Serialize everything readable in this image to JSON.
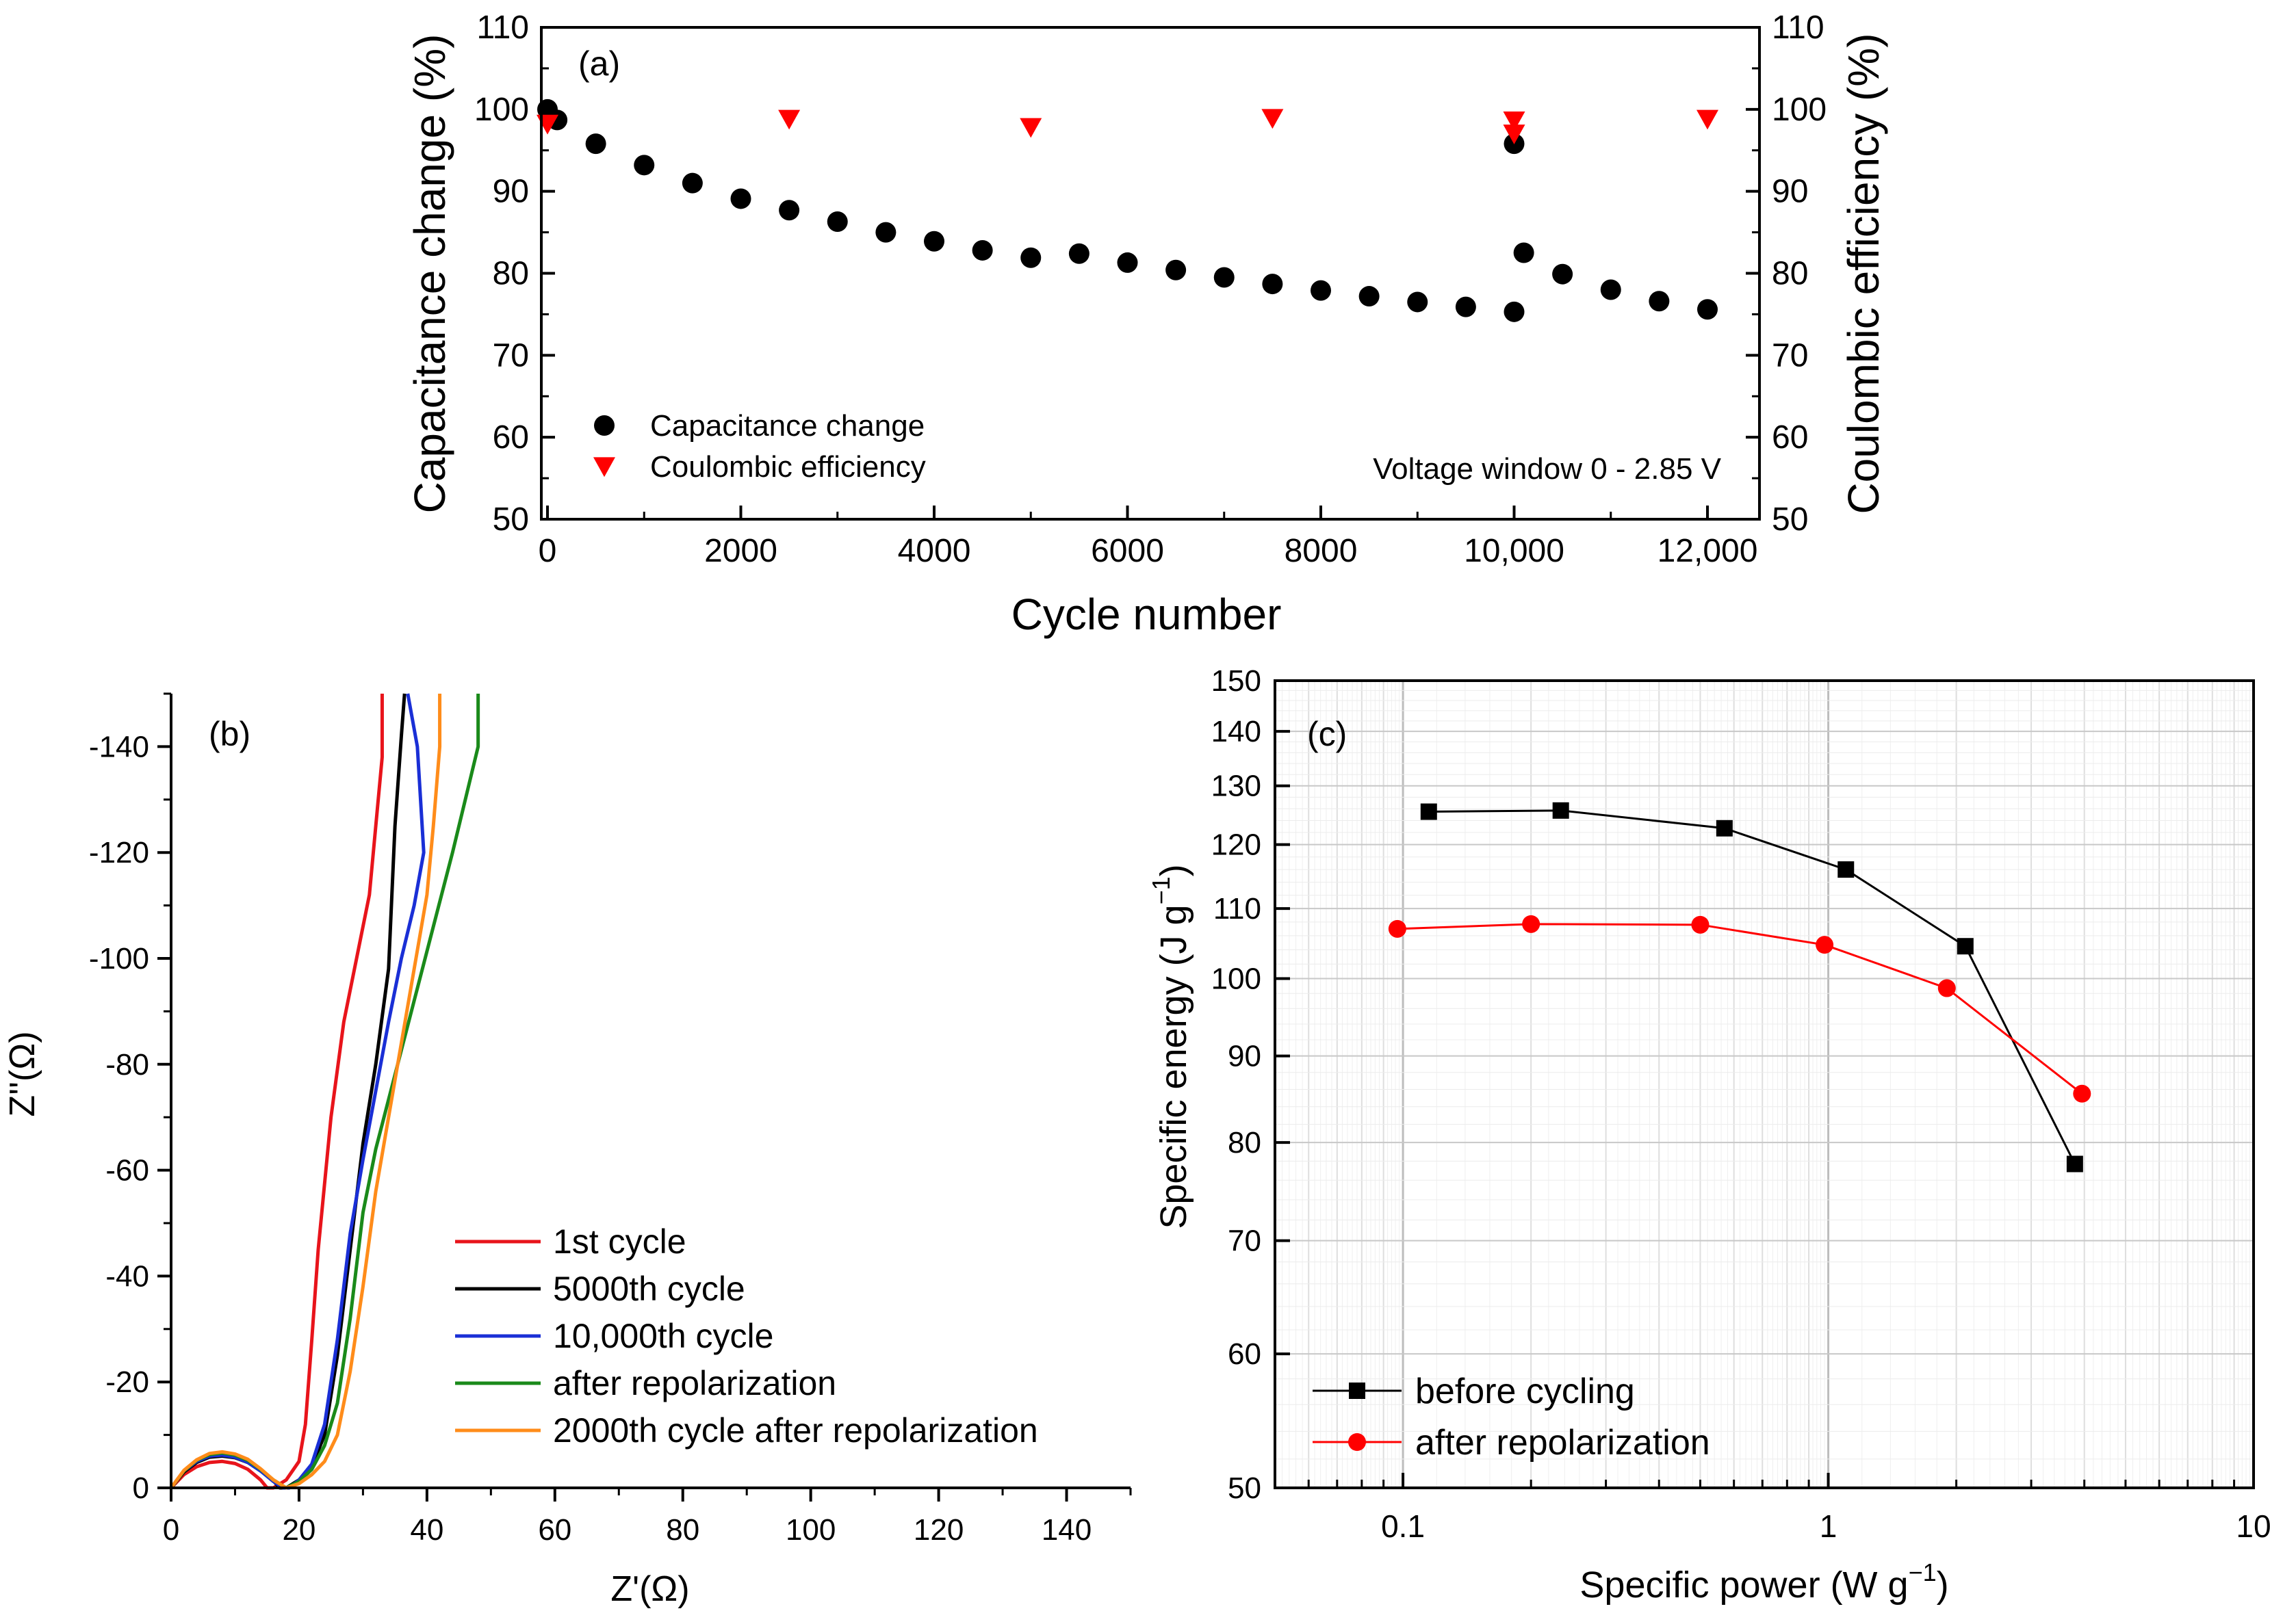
{
  "chart_data": [
    {
      "id": "a",
      "panel_label": "(a)",
      "type": "scatter",
      "xlabel": "Cycle number",
      "ylabel_left": "Capacitance change (%)",
      "ylabel_right": "Coulombic efficiency (%)",
      "xlim": [
        0,
        12000
      ],
      "ylim": [
        50,
        110
      ],
      "x_ticks": [
        0,
        2000,
        4000,
        6000,
        8000,
        10000,
        12000
      ],
      "x_tick_labels": [
        "0",
        "2000",
        "4000",
        "6000",
        "8000",
        "10,000",
        "12,000"
      ],
      "y_ticks": [
        50,
        60,
        70,
        80,
        90,
        100,
        110
      ],
      "y_tick_labels": [
        "50",
        "60",
        "70",
        "80",
        "90",
        "100",
        "110"
      ],
      "annotation": "Voltage window 0 - 2.85 V",
      "series": [
        {
          "name": "Capacitance change",
          "marker": "circle",
          "color": "#000000",
          "x": [
            0,
            100,
            500,
            1000,
            1500,
            2000,
            2500,
            3000,
            3500,
            4000,
            4500,
            5000,
            5500,
            6000,
            6500,
            7000,
            7500,
            8000,
            8500,
            9000,
            9500,
            10000,
            10000,
            10100,
            10500,
            11000,
            11500,
            12000
          ],
          "y": [
            100,
            98.7,
            95.8,
            93.2,
            91.0,
            89.1,
            87.7,
            86.3,
            85.0,
            83.9,
            82.8,
            81.9,
            82.4,
            81.3,
            80.4,
            79.5,
            78.7,
            77.9,
            77.2,
            76.5,
            75.9,
            75.3,
            95.8,
            82.5,
            79.9,
            78.0,
            76.6,
            75.6
          ]
        },
        {
          "name": "Coulombic efficiency",
          "marker": "triangle-down",
          "color": "#ff0000",
          "x": [
            0,
            2500,
            5000,
            7500,
            10000,
            10000,
            12000
          ],
          "y": [
            98.2,
            98.8,
            97.8,
            98.9,
            98.6,
            97.0,
            98.8
          ]
        }
      ]
    },
    {
      "id": "b",
      "panel_label": "(b)",
      "type": "line",
      "xlabel": "Z'(Ω)",
      "ylabel": "Z''(Ω)",
      "xlim": [
        0,
        150
      ],
      "ylim": [
        0,
        -150
      ],
      "x_ticks": [
        0,
        20,
        40,
        60,
        80,
        100,
        120,
        140
      ],
      "x_tick_labels": [
        "0",
        "20",
        "40",
        "60",
        "80",
        "100",
        "120",
        "140"
      ],
      "y_ticks": [
        0,
        -20,
        -40,
        -60,
        -80,
        -100,
        -120,
        -140
      ],
      "y_tick_labels": [
        "0",
        "-20",
        "-40",
        "-60",
        "-80",
        "-100",
        "-120",
        "-140"
      ],
      "series": [
        {
          "name": "1st cycle",
          "color": "#e8141b",
          "x": [
            0,
            2,
            4,
            6,
            8,
            10,
            12,
            14,
            15,
            16,
            18,
            20,
            21,
            22,
            23,
            25,
            27,
            29,
            31,
            33,
            33
          ],
          "y": [
            0,
            -2.5,
            -4,
            -4.8,
            -5,
            -4.6,
            -3.5,
            -1.5,
            0,
            0,
            -1.5,
            -5,
            -12,
            -28,
            -45,
            -70,
            -88,
            -100,
            -112,
            -138,
            -150
          ]
        },
        {
          "name": "5000th cycle",
          "color": "#000000",
          "x": [
            0,
            2,
            4,
            6,
            8,
            10,
            12,
            14,
            16,
            17,
            18,
            20,
            22,
            24,
            26,
            28,
            30,
            32,
            34,
            35,
            36,
            36.5
          ],
          "y": [
            0,
            -3,
            -4.8,
            -5.8,
            -6,
            -5.7,
            -4.8,
            -3.2,
            -1.3,
            0,
            0,
            -1.5,
            -4,
            -10,
            -25,
            -45,
            -65,
            -80,
            -98,
            -125,
            -142,
            -150
          ]
        },
        {
          "name": "10,000th cycle",
          "color": "#1a2fd6",
          "x": [
            0,
            2,
            4,
            6,
            8,
            10,
            12,
            14,
            16,
            17.5,
            18.5,
            20,
            22,
            24,
            26,
            28,
            30,
            32,
            34,
            36,
            38,
            39.5,
            38.5,
            37
          ],
          "y": [
            0,
            -3.2,
            -5,
            -6,
            -6.2,
            -5.8,
            -4.8,
            -3.2,
            -1.2,
            0,
            0,
            -1.5,
            -4.5,
            -12,
            -28,
            -48,
            -62,
            -75,
            -88,
            -100,
            -110,
            -120,
            -140,
            -150
          ]
        },
        {
          "name": "after repolarization",
          "color": "#1a8a1a",
          "x": [
            0,
            2,
            4,
            6,
            8,
            10,
            12,
            14,
            16,
            18,
            20,
            22,
            24,
            26,
            28,
            30,
            32,
            35,
            38,
            41,
            44,
            47,
            48,
            48
          ],
          "y": [
            0,
            -3.2,
            -5.2,
            -6.3,
            -6.6,
            -6.2,
            -5.2,
            -3.5,
            -1.5,
            0,
            -1.2,
            -3.5,
            -8,
            -16,
            -32,
            -52,
            -64,
            -78,
            -92,
            -106,
            -120,
            -135,
            -140,
            -150
          ]
        },
        {
          "name": "2000th cycle after repolarization",
          "color": "#ff8c1a",
          "x": [
            0,
            2,
            4,
            6,
            8,
            10,
            12,
            14,
            16,
            18,
            20,
            22,
            24,
            26,
            28,
            30,
            32,
            34,
            36,
            38,
            40,
            41,
            42,
            42
          ],
          "y": [
            0,
            -3.3,
            -5.3,
            -6.5,
            -6.8,
            -6.4,
            -5.4,
            -3.6,
            -1.5,
            0,
            -0.8,
            -2.5,
            -5,
            -10,
            -22,
            -38,
            -56,
            -70,
            -84,
            -98,
            -112,
            -125,
            -140,
            -150
          ]
        }
      ]
    },
    {
      "id": "c",
      "panel_label": "(c)",
      "type": "line",
      "xscale": "log",
      "yscale": "log",
      "xlabel": "Specific power (W g",
      "xlabel_sup": "−1",
      "xlabel_end": ")",
      "ylabel": "Specific energy (J g",
      "ylabel_sup": "−1",
      "ylabel_end": ")",
      "xlim": [
        0.05,
        10
      ],
      "ylim": [
        50,
        150
      ],
      "x_ticks": [
        0.1,
        1,
        10
      ],
      "x_tick_labels": [
        "0.1",
        "1",
        "10"
      ],
      "y_ticks": [
        50,
        60,
        70,
        80,
        90,
        100,
        110,
        120,
        130,
        140,
        150
      ],
      "y_tick_labels": [
        "50",
        "60",
        "70",
        "80",
        "90",
        "100",
        "110",
        "120",
        "130",
        "140",
        "150"
      ],
      "grid": true,
      "series": [
        {
          "name": "before cycling",
          "marker": "square",
          "color": "#000000",
          "x": [
            0.115,
            0.235,
            0.57,
            1.1,
            2.1,
            3.8
          ],
          "y": [
            125.5,
            125.7,
            122.7,
            116.0,
            104.5,
            77.7
          ]
        },
        {
          "name": "after repolarization",
          "marker": "circle",
          "color": "#ff0000",
          "x": [
            0.097,
            0.2,
            0.5,
            0.98,
            1.9,
            3.95
          ],
          "y": [
            107.0,
            107.7,
            107.6,
            104.7,
            98.7,
            85.5
          ]
        }
      ]
    }
  ]
}
